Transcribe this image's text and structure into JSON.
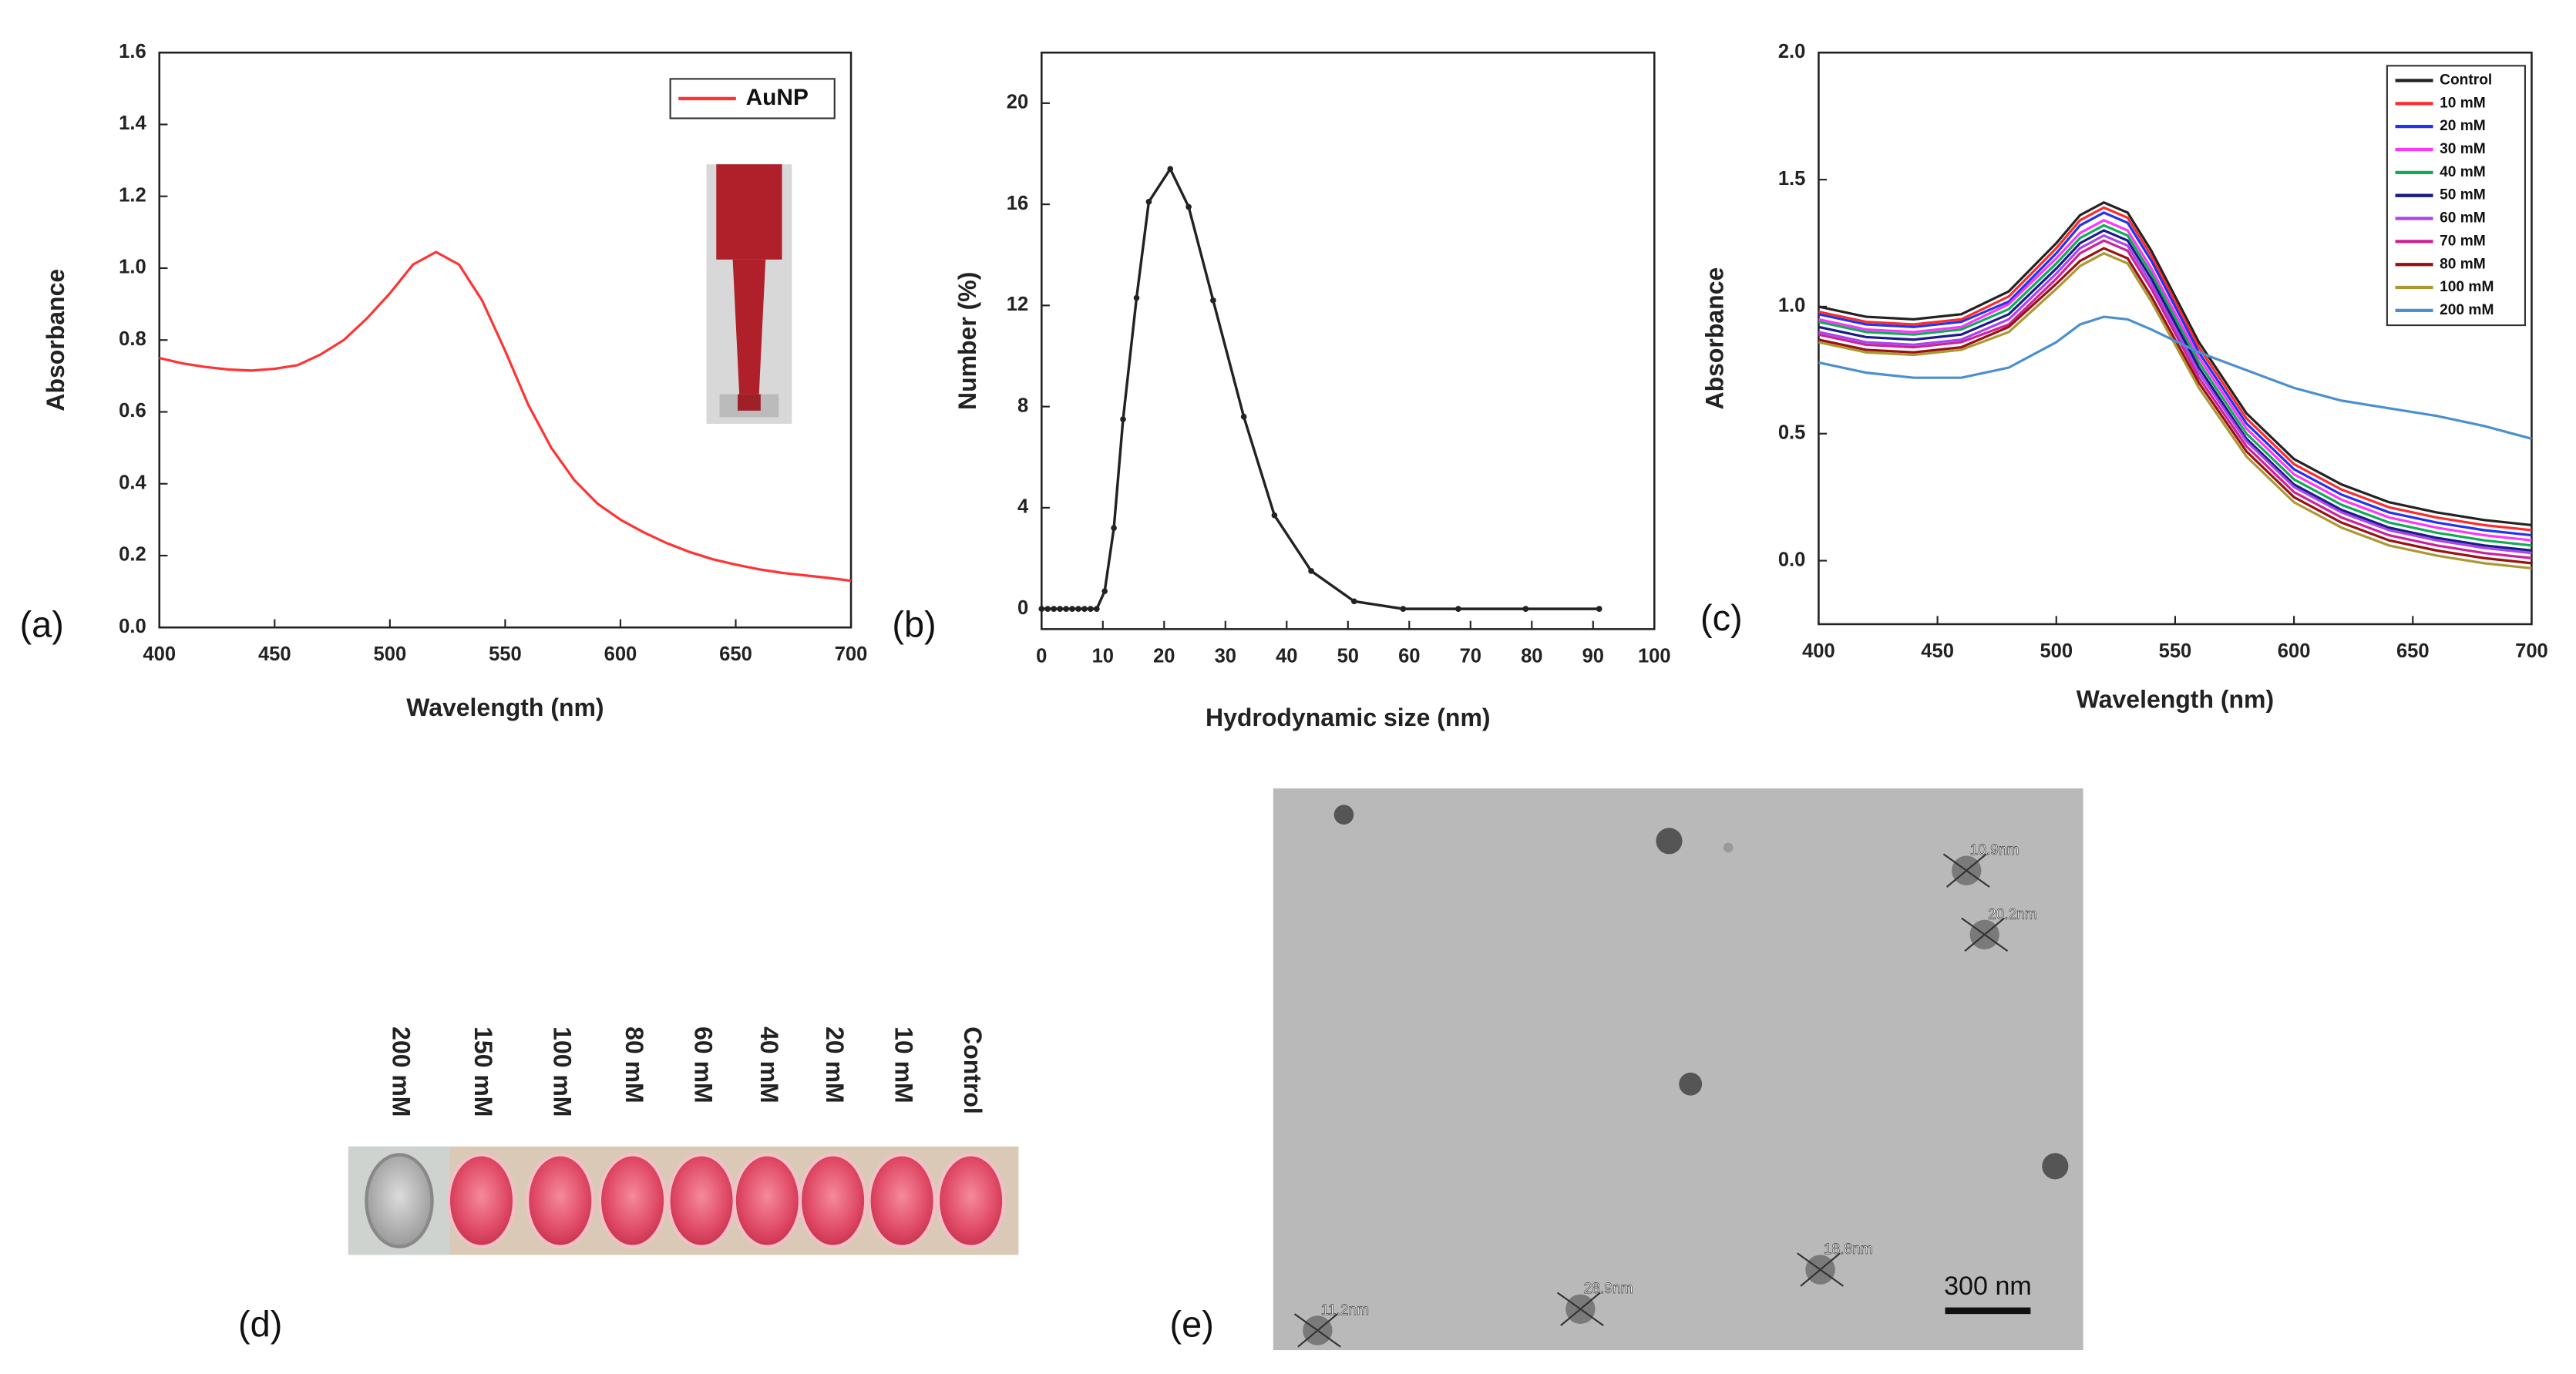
{
  "chart_data": [
    {
      "type": "line",
      "xlabel": "Wavelength (nm)",
      "ylabel": "Absorbance",
      "x": [
        400,
        410,
        420,
        430,
        440,
        450,
        460,
        470,
        480,
        490,
        500,
        510,
        520,
        530,
        540,
        550,
        560,
        570,
        580,
        590,
        600,
        610,
        620,
        630,
        640,
        650,
        660,
        670,
        680,
        690,
        700
      ],
      "series": [
        {
          "name": "AuNP",
          "color": "#ff3333",
          "values": [
            0.75,
            0.735,
            0.725,
            0.718,
            0.715,
            0.72,
            0.73,
            0.76,
            0.8,
            0.86,
            0.93,
            1.01,
            1.045,
            1.01,
            0.91,
            0.77,
            0.62,
            0.5,
            0.41,
            0.345,
            0.3,
            0.265,
            0.235,
            0.21,
            0.19,
            0.175,
            0.162,
            0.152,
            0.145,
            0.138,
            0.13
          ]
        }
      ],
      "xlim": [
        400,
        700
      ],
      "xticks": [
        400,
        450,
        500,
        550,
        600,
        650,
        700
      ],
      "ylim": [
        0,
        1.6
      ],
      "yticks": [
        {
          "value": 0,
          "label": "0.0"
        },
        0.2,
        0.4,
        0.6,
        0.8,
        {
          "value": 1,
          "label": "1.0"
        },
        1.2,
        1.4,
        1.6
      ],
      "legend": "upper right"
    },
    {
      "type": "line",
      "xlabel": "Hydrodynamic size (nm)",
      "ylabel": "Number (%)",
      "marker": "circle",
      "x": [
        0,
        1,
        2,
        3,
        4,
        5,
        6,
        7,
        8,
        9,
        10.3,
        11.8,
        13.3,
        15.5,
        17.5,
        21,
        24,
        28,
        33,
        38,
        44,
        51,
        59,
        68,
        79,
        91
      ],
      "series": [
        {
          "name": null,
          "color": "#222222",
          "values": [
            0,
            0,
            0,
            0,
            0,
            0,
            0,
            0,
            0,
            0,
            0.7,
            3.2,
            7.5,
            12.3,
            16.1,
            17.4,
            15.9,
            12.2,
            7.6,
            3.7,
            1.5,
            0.3,
            0,
            0,
            0,
            0
          ]
        }
      ],
      "xlim": [
        0,
        100
      ],
      "xticks": [
        0,
        10,
        20,
        30,
        40,
        50,
        60,
        70,
        80,
        90,
        100
      ],
      "ylim": [
        -0.8,
        22
      ],
      "yticks": [
        0,
        4,
        8,
        12,
        16,
        20
      ]
    },
    {
      "type": "line",
      "xlabel": "Wavelength (nm)",
      "ylabel": "Absorbance",
      "x": [
        400,
        420,
        440,
        460,
        480,
        500,
        510,
        520,
        530,
        540,
        560,
        580,
        600,
        620,
        640,
        660,
        680,
        700
      ],
      "series": [
        {
          "name": "Control",
          "color": "#222222",
          "values": [
            1.0,
            0.96,
            0.95,
            0.97,
            1.06,
            1.25,
            1.36,
            1.41,
            1.37,
            1.22,
            0.86,
            0.58,
            0.4,
            0.3,
            0.23,
            0.19,
            0.16,
            0.14
          ]
        },
        {
          "name": "10 mM",
          "color": "#ff2a2a",
          "values": [
            0.98,
            0.94,
            0.93,
            0.95,
            1.04,
            1.23,
            1.34,
            1.39,
            1.35,
            1.2,
            0.84,
            0.56,
            0.38,
            0.28,
            0.21,
            0.17,
            0.14,
            0.12
          ]
        },
        {
          "name": "20 mM",
          "color": "#2233ee",
          "values": [
            0.97,
            0.93,
            0.92,
            0.94,
            1.02,
            1.21,
            1.32,
            1.37,
            1.33,
            1.18,
            0.82,
            0.54,
            0.36,
            0.26,
            0.19,
            0.15,
            0.12,
            0.1
          ]
        },
        {
          "name": "30 mM",
          "color": "#ff33ff",
          "values": [
            0.95,
            0.91,
            0.9,
            0.92,
            1.01,
            1.19,
            1.29,
            1.34,
            1.3,
            1.15,
            0.8,
            0.52,
            0.34,
            0.24,
            0.17,
            0.13,
            0.1,
            0.08
          ]
        },
        {
          "name": "40 mM",
          "color": "#11aa55",
          "values": [
            0.94,
            0.9,
            0.89,
            0.91,
            0.99,
            1.17,
            1.27,
            1.32,
            1.28,
            1.13,
            0.78,
            0.5,
            0.32,
            0.22,
            0.15,
            0.11,
            0.08,
            0.06
          ]
        },
        {
          "name": "50 mM",
          "color": "#1a1a88",
          "values": [
            0.92,
            0.88,
            0.87,
            0.89,
            0.97,
            1.15,
            1.25,
            1.3,
            1.26,
            1.11,
            0.76,
            0.48,
            0.3,
            0.2,
            0.13,
            0.09,
            0.06,
            0.04
          ]
        },
        {
          "name": "60 mM",
          "color": "#aa44ee",
          "values": [
            0.9,
            0.86,
            0.85,
            0.87,
            0.95,
            1.13,
            1.23,
            1.28,
            1.24,
            1.09,
            0.74,
            0.47,
            0.29,
            0.19,
            0.12,
            0.08,
            0.05,
            0.03
          ]
        },
        {
          "name": "70 mM",
          "color": "#cc2299",
          "values": [
            0.89,
            0.85,
            0.84,
            0.86,
            0.93,
            1.11,
            1.21,
            1.26,
            1.22,
            1.07,
            0.72,
            0.45,
            0.27,
            0.17,
            0.1,
            0.06,
            0.03,
            0.01
          ]
        },
        {
          "name": "80 mM",
          "color": "#991111",
          "values": [
            0.87,
            0.83,
            0.82,
            0.84,
            0.92,
            1.09,
            1.18,
            1.23,
            1.19,
            1.04,
            0.7,
            0.43,
            0.25,
            0.15,
            0.08,
            0.04,
            0.01,
            -0.01
          ]
        },
        {
          "name": "100 mM",
          "color": "#aa9933",
          "values": [
            0.86,
            0.82,
            0.81,
            0.83,
            0.9,
            1.07,
            1.16,
            1.21,
            1.17,
            1.02,
            0.68,
            0.41,
            0.23,
            0.13,
            0.06,
            0.02,
            -0.01,
            -0.03
          ]
        },
        {
          "name": "200 mM",
          "color": "#4a8fd0",
          "values": [
            0.78,
            0.74,
            0.72,
            0.72,
            0.76,
            0.86,
            0.93,
            0.96,
            0.95,
            0.91,
            0.82,
            0.75,
            0.68,
            0.63,
            0.6,
            0.57,
            0.53,
            0.48
          ]
        }
      ],
      "xlim": [
        400,
        700
      ],
      "xticks": [
        400,
        450,
        500,
        550,
        600,
        650,
        700
      ],
      "ylim": [
        -0.25,
        2.0
      ],
      "yticks": [
        {
          "value": 0,
          "label": "0.0"
        },
        0.5,
        {
          "value": 1,
          "label": "1.0"
        },
        1.5,
        {
          "value": 2,
          "label": "2.0"
        }
      ],
      "legend": "upper right"
    }
  ],
  "panel_labels": [
    "(a)",
    "(b)",
    "(c)",
    "(d)",
    "(e)"
  ],
  "well_plate": {
    "labels": [
      "200 mM",
      "150 mM",
      "100 mM",
      "80 mM",
      "60 mM",
      "40 mM",
      "20 mM",
      "10 mM",
      "Control"
    ]
  },
  "tem_image": {
    "scale_bar": "300 nm",
    "measurements": [
      "10.9nm",
      "20.2nm",
      "18.8nm",
      "28.9nm",
      "11.2nm"
    ]
  }
}
